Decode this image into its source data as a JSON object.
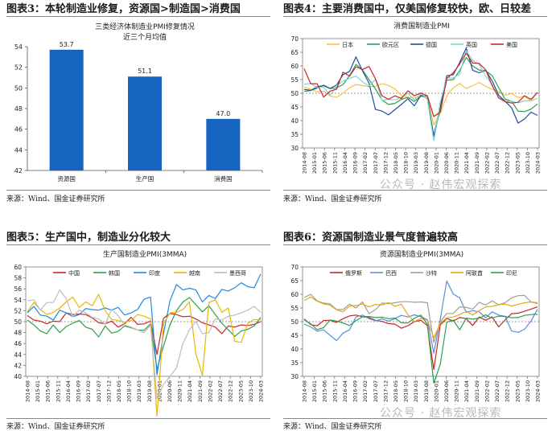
{
  "panels": [
    {
      "title": "图表3：本轮制造业修复，资源国>制造国>消费国",
      "source": "来源：Wind、国金证券研究所"
    },
    {
      "title": "图表4：主要消费国中，仅美国修复较快，欧、日较差",
      "source": "来源：Wind、国金证券研究所"
    },
    {
      "title": "图表5：生产国中，制造业分化较大",
      "source": "来源：Wind、国金证券研究所"
    },
    {
      "title": "图表6：资源国制造业景气度普遍较高",
      "source": "来源：Wind、国金证券研究所"
    }
  ],
  "watermark": "公众号 · 赵伟宏观探索",
  "date_ticks": [
    "2014-08",
    "2015-01",
    "2015-06",
    "2015-11",
    "2016-04",
    "2016-09",
    "2017-02",
    "2017-07",
    "2017-12",
    "2018-05",
    "2018-10",
    "2019-03",
    "2019-08",
    "2020-01",
    "2020-06",
    "2020-11",
    "2021-04",
    "2021-09",
    "2022-02",
    "2022-07",
    "2022-12",
    "2023-05",
    "2023-10",
    "2024-03"
  ],
  "date_ticks_b": [
    "2014-08",
    "2015-01",
    "2015-06",
    "2015-11",
    "2016-04",
    "2016-09",
    "2017-02",
    "2017-07",
    "2017-12",
    "2018-05",
    "2018-10",
    "2019-03",
    "2019-08",
    "2020-01",
    "2020-06",
    "2020-11",
    "2021-04",
    "2021-09",
    "2022-02",
    "2022-07",
    "2022-12",
    "2023-05",
    "2023-10",
    "2024-03"
  ],
  "chart_data": [
    {
      "type": "bar",
      "title": "三类经济体制造业PMI修复情况",
      "subtitle": "近三个月均值",
      "categories": [
        "资源国",
        "生产国",
        "消费国"
      ],
      "values": [
        53.7,
        51.1,
        47.0
      ],
      "value_labels": [
        "53.7",
        "51.1",
        "47.0"
      ],
      "ylim": [
        42,
        54
      ],
      "yticks": [
        "42",
        "44",
        "46",
        "48",
        "50",
        "52",
        "54"
      ],
      "color": "#1565c0"
    },
    {
      "type": "line",
      "title": "消费国制造业PMI",
      "ylim": [
        30,
        70
      ],
      "yticks": [
        "30",
        "35",
        "40",
        "45",
        "50",
        "55",
        "60",
        "65",
        "70"
      ],
      "reference": 50,
      "series": [
        {
          "name": "日本",
          "color": "#f5c242",
          "values": [
            52.2,
            51.5,
            50.5,
            50.8,
            49.0,
            48.5,
            50.1,
            52.0,
            53.2,
            52.8,
            52.4,
            52.5,
            53.5,
            52.9,
            51.6,
            49.2,
            48.5,
            48.4,
            48.8,
            49.0,
            38.4,
            42.7,
            49.0,
            52.0,
            53.6,
            51.7,
            52.8,
            54.0,
            52.5,
            51.5,
            50.6,
            49.3,
            49.9,
            48.4,
            48.9,
            47.2,
            48.2
          ]
        },
        {
          "name": "欧元区",
          "color": "#2e9e4a",
          "values": [
            50.7,
            51.0,
            52.5,
            52.8,
            51.7,
            52.0,
            53.2,
            56.5,
            60.6,
            58.5,
            55.0,
            51.6,
            47.6,
            45.9,
            46.3,
            47.8,
            48.5,
            47.0,
            49.0,
            49.0,
            33.4,
            45.0,
            54.8,
            55.0,
            58.3,
            63.1,
            60.0,
            58.5,
            58.2,
            56.5,
            52.1,
            47.8,
            47.1,
            43.5,
            43.3,
            44.2,
            46.1
          ]
        },
        {
          "name": "德国",
          "color": "#1f4e9a",
          "values": [
            51.4,
            51.1,
            51.9,
            52.9,
            51.8,
            53.0,
            56.8,
            58.0,
            63.3,
            58.2,
            53.7,
            44.1,
            43.5,
            42.1,
            44.0,
            45.9,
            48.0,
            45.4,
            49.3,
            48.1,
            34.5,
            45.2,
            56.4,
            56.8,
            61.3,
            66.6,
            58.4,
            57.5,
            58.4,
            54.6,
            49.3,
            47.1,
            44.7,
            39.1,
            40.6,
            43.1,
            41.9
          ]
        },
        {
          "name": "英国",
          "color": "#7ed6d2",
          "values": [
            53.3,
            53.6,
            52.1,
            52.3,
            49.2,
            52.8,
            54.5,
            55.4,
            56.3,
            54.2,
            52.6,
            55.1,
            47.4,
            47.8,
            47.6,
            48.5,
            50.0,
            47.6,
            50.0,
            47.8,
            32.6,
            46.8,
            55.6,
            55.6,
            57.0,
            65.6,
            62.0,
            60.6,
            56.2,
            53.2,
            48.2,
            46.9,
            47.1,
            46.5,
            47.2,
            47.3,
            50.3
          ]
        },
        {
          "name": "美国",
          "color": "#c62828",
          "values": [
            59.0,
            53.5,
            53.5,
            48.6,
            50.8,
            51.5,
            57.7,
            56.3,
            59.7,
            58.7,
            59.8,
            55.3,
            49.1,
            47.8,
            49.1,
            48.1,
            50.9,
            49.1,
            50.1,
            49.1,
            41.5,
            43.1,
            55.4,
            57.5,
            60.7,
            64.7,
            61.1,
            60.9,
            58.6,
            52.8,
            48.4,
            46.9,
            46.4,
            46.7,
            49.1,
            47.8,
            50.3
          ]
        }
      ]
    },
    {
      "type": "line",
      "title": "生产国制造业PMI(3MMA)",
      "ylim": [
        40,
        60
      ],
      "yticks": [
        "40",
        "42",
        "44",
        "46",
        "48",
        "50",
        "52",
        "54",
        "56",
        "58",
        "60"
      ],
      "reference": 50,
      "series": [
        {
          "name": "中国",
          "color": "#c62828",
          "values": [
            51.1,
            50.3,
            50.1,
            49.6,
            50.1,
            50.0,
            51.6,
            51.3,
            51.4,
            51.3,
            50.7,
            49.8,
            49.6,
            50.1,
            49.0,
            49.6,
            50.8,
            49.5,
            49.6,
            50.1,
            44.0,
            50.6,
            51.5,
            51.3,
            50.9,
            51.0,
            50.5,
            49.8,
            49.4,
            49.0,
            47.8,
            49.2,
            49.0,
            49.4,
            49.3,
            49.5,
            50.0
          ]
        },
        {
          "name": "韩国",
          "color": "#2e9e4a",
          "values": [
            50.3,
            49.4,
            48.3,
            47.8,
            49.4,
            48.0,
            49.1,
            49.7,
            50.2,
            49.0,
            48.6,
            47.2,
            49.2,
            47.9,
            48.2,
            49.2,
            48.9,
            48.5,
            48.4,
            49.6,
            41.3,
            45.5,
            49.4,
            52.0,
            53.6,
            54.4,
            53.1,
            51.8,
            52.9,
            51.3,
            49.7,
            48.5,
            47.3,
            48.3,
            48.6,
            49.2,
            50.8
          ]
        },
        {
          "name": "印度",
          "color": "#1e88e5",
          "values": [
            51.6,
            52.8,
            51.2,
            51.0,
            50.3,
            52.1,
            51.6,
            50.9,
            51.3,
            52.4,
            52.2,
            52.1,
            52.5,
            52.1,
            52.6,
            51.2,
            51.6,
            52.2,
            54.1,
            54.5,
            40.3,
            47.8,
            53.8,
            56.8,
            55.8,
            56.1,
            55.8,
            53.6,
            54.8,
            54.2,
            55.9,
            55.6,
            56.2,
            57.1,
            56.4,
            56.2,
            58.7
          ]
        },
        {
          "name": "越南",
          "color": "#e6b800",
          "values": [
            51.8,
            53.5,
            52.2,
            51.3,
            51.7,
            52.5,
            53.6,
            54.5,
            52.6,
            53.6,
            52.9,
            55.0,
            52.0,
            50.4,
            50.2,
            49.9,
            50.2,
            51.3,
            51.0,
            50.5,
            32.7,
            49.6,
            51.6,
            51.7,
            52.2,
            53.6,
            44.1,
            40.2,
            53.5,
            54.0,
            51.7,
            52.5,
            46.4,
            46.2,
            49.7,
            50.4,
            50.3
          ]
        },
        {
          "name": "墨西哥",
          "color": "#bdbdbd",
          "values": [
            53.8,
            54.0,
            52.1,
            53.5,
            53.5,
            55.8,
            54.2,
            50.9,
            52.1,
            51.6,
            50.8,
            50.5,
            49.5,
            52.3,
            51.1,
            49.4,
            49.0,
            48.5,
            48.0,
            49.3,
            36.0,
            38.5,
            40.0,
            41.5,
            46.0,
            48.5,
            50.0,
            47.8,
            48.0,
            50.5,
            50.3,
            51.0,
            51.2,
            51.6,
            52.1,
            52.8,
            51.7
          ]
        }
      ]
    },
    {
      "type": "line",
      "title": "资源国制造业PMI(3MMA)",
      "ylim": [
        30,
        70
      ],
      "yticks": [
        "30",
        "35",
        "40",
        "45",
        "50",
        "55",
        "60",
        "65",
        "70"
      ],
      "reference": 50,
      "series": [
        {
          "name": "俄罗斯",
          "color": "#c62828",
          "values": [
            51.0,
            48.9,
            48.5,
            50.4,
            50.5,
            49.7,
            51.1,
            52.1,
            52.4,
            51.8,
            51.5,
            50.5,
            50.1,
            49.3,
            49.1,
            47.6,
            48.5,
            50.0,
            50.5,
            48.5,
            32.5,
            48.8,
            51.2,
            50.2,
            51.5,
            51.1,
            48.6,
            51.7,
            50.5,
            51.7,
            48.1,
            50.6,
            52.9,
            53.1,
            53.8,
            54.6,
            55.4
          ]
        },
        {
          "name": "巴西",
          "color": "#5b8fd6",
          "values": [
            49.1,
            48.1,
            46.5,
            47.0,
            45.0,
            43.1,
            45.8,
            47.0,
            51.7,
            52.4,
            51.1,
            50.3,
            51.0,
            50.2,
            51.1,
            52.3,
            51.7,
            52.5,
            51.8,
            50.7,
            38.5,
            51.0,
            64.9,
            60.1,
            58.7,
            53.4,
            54.0,
            53.6,
            51.4,
            53.6,
            52.4,
            51.9,
            46.6,
            46.1,
            47.2,
            50.2,
            54.5
          ]
        },
        {
          "name": "沙特",
          "color": "#9e9e9e",
          "values": [
            58.8,
            60.0,
            57.6,
            56.8,
            56.5,
            54.4,
            54.4,
            56.4,
            55.0,
            57.2,
            52.9,
            54.4,
            56.8,
            56.6,
            56.9,
            57.3,
            57.3,
            57.1,
            57.2,
            56.9,
            42.4,
            50.0,
            53.0,
            53.0,
            55.4,
            55.2,
            54.6,
            57.1,
            56.1,
            57.6,
            56.2,
            56.9,
            58.7,
            59.5,
            59.6,
            57.2,
            56.6
          ]
        },
        {
          "name": "阿联酋",
          "color": "#e6a817",
          "values": [
            57.7,
            59.0,
            57.5,
            56.5,
            56.0,
            54.3,
            53.6,
            55.7,
            55.9,
            56.4,
            55.4,
            56.3,
            56.1,
            57.0,
            55.6,
            56.4,
            52.5,
            50.0,
            51.2,
            50.5,
            44.1,
            49.4,
            51.4,
            51.7,
            52.6,
            53.8,
            52.4,
            54.0,
            55.4,
            55.6,
            56.2,
            56.4,
            55.7,
            56.3,
            56.9,
            57.2,
            56.9
          ]
        },
        {
          "name": "印尼",
          "color": "#2e9e4a",
          "values": [
            50.7,
            49.2,
            47.1,
            47.8,
            50.6,
            50.2,
            49.5,
            48.6,
            50.4,
            51.7,
            51.9,
            51.5,
            51.6,
            51.1,
            51.3,
            49.6,
            49.5,
            51.2,
            52.4,
            49.0,
            27.5,
            34.5,
            49.8,
            50.6,
            47.0,
            51.3,
            50.9,
            51.3,
            52.5,
            51.3,
            52.0,
            51.9,
            51.4,
            51.5,
            52.3,
            52.6,
            52.7
          ]
        }
      ]
    }
  ]
}
